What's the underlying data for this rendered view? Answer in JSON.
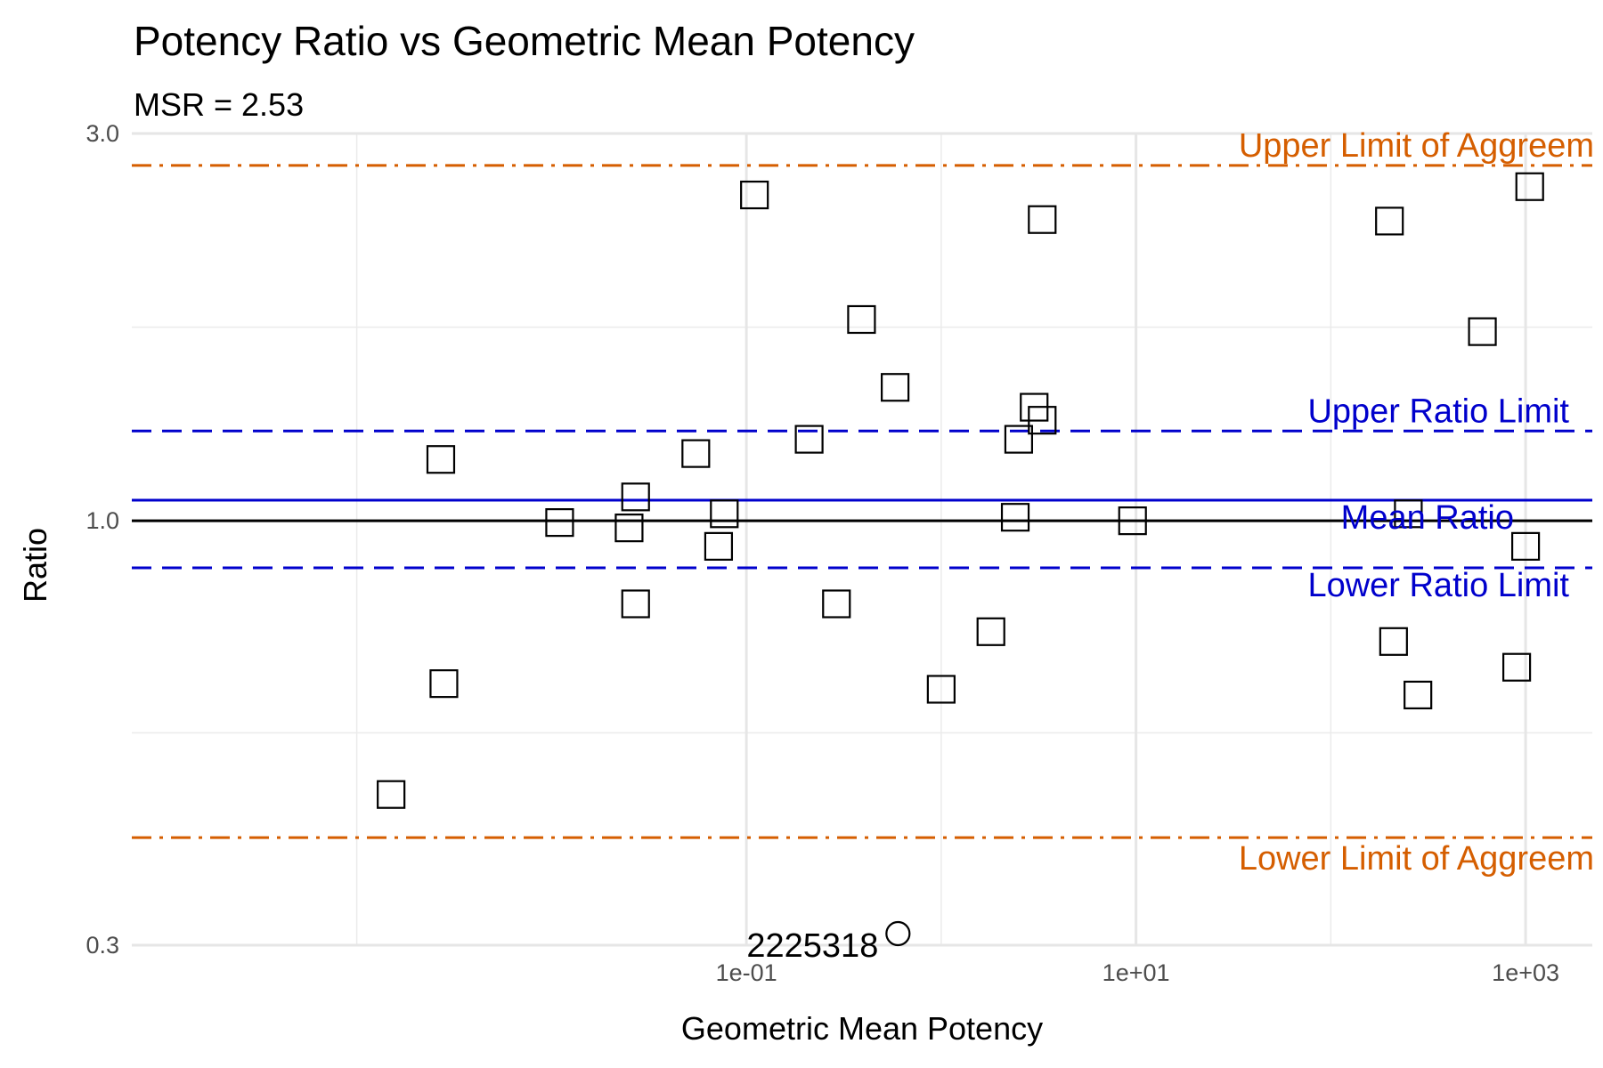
{
  "chart_data": {
    "type": "scatter",
    "title": "Potency Ratio vs Geometric Mean Potency",
    "subtitle": "MSR = 2.53",
    "xlabel": "Geometric Mean Potency",
    "ylabel": "Ratio",
    "x_scale": "log10",
    "y_scale": "log10",
    "xlim": [
      7e-05,
      2200
    ],
    "ylim": [
      0.3,
      3.0
    ],
    "x_ticks": [
      {
        "value": 0.1,
        "label": "1e-01"
      },
      {
        "value": 10,
        "label": "1e+01"
      },
      {
        "value": 1000,
        "label": "1e+03"
      }
    ],
    "x_minor_ticks": [
      0.001,
      1,
      100
    ],
    "y_ticks": [
      {
        "value": 0.3,
        "label": "0.3"
      },
      {
        "value": 1.0,
        "label": "1.0"
      },
      {
        "value": 3.0,
        "label": "3.0"
      }
    ],
    "y_minor_ticks": [
      0.548,
      1.732
    ],
    "grid": true,
    "reference_lines": [
      {
        "label": "Upper Limit of Aggreem",
        "y": 2.74,
        "style": "dashdot",
        "color": "#D55E00"
      },
      {
        "label": "Upper Ratio Limit",
        "y": 1.29,
        "style": "dashed",
        "color": "#0000CC"
      },
      {
        "label": "Mean Ratio",
        "y": 1.06,
        "style": "solid",
        "color": "#0000CC"
      },
      {
        "label": "",
        "y": 1.0,
        "style": "solid",
        "color": "#000000"
      },
      {
        "label": "Lower Ratio Limit",
        "y": 0.875,
        "style": "dashed",
        "color": "#0000CC"
      },
      {
        "label": "Lower Limit of Aggreem",
        "y": 0.407,
        "style": "dashdot",
        "color": "#D55E00"
      }
    ],
    "series": [
      {
        "marker": "square",
        "points": [
          {
            "x": 0.0015,
            "y": 0.46
          },
          {
            "x": 0.0027,
            "y": 1.19
          },
          {
            "x": 0.0028,
            "y": 0.63
          },
          {
            "x": 0.011,
            "y": 0.995
          },
          {
            "x": 0.025,
            "y": 0.98
          },
          {
            "x": 0.027,
            "y": 1.07
          },
          {
            "x": 0.027,
            "y": 0.79
          },
          {
            "x": 0.055,
            "y": 1.21
          },
          {
            "x": 0.072,
            "y": 0.93
          },
          {
            "x": 0.077,
            "y": 1.02
          },
          {
            "x": 0.11,
            "y": 2.52
          },
          {
            "x": 0.21,
            "y": 1.26
          },
          {
            "x": 0.29,
            "y": 0.79
          },
          {
            "x": 0.39,
            "y": 1.77
          },
          {
            "x": 0.58,
            "y": 1.46
          },
          {
            "x": 1.0,
            "y": 0.62
          },
          {
            "x": 1.8,
            "y": 0.73
          },
          {
            "x": 2.4,
            "y": 1.01
          },
          {
            "x": 2.5,
            "y": 1.26
          },
          {
            "x": 3.0,
            "y": 1.38
          },
          {
            "x": 3.3,
            "y": 1.33
          },
          {
            "x": 3.3,
            "y": 2.35
          },
          {
            "x": 9.6,
            "y": 1.0
          },
          {
            "x": 200,
            "y": 2.34
          },
          {
            "x": 210,
            "y": 0.71
          },
          {
            "x": 250,
            "y": 1.02
          },
          {
            "x": 280,
            "y": 0.61
          },
          {
            "x": 900,
            "y": 0.66
          },
          {
            "x": 1000,
            "y": 0.93
          },
          {
            "x": 600,
            "y": 1.71
          },
          {
            "x": 1050,
            "y": 2.58
          }
        ]
      },
      {
        "marker": "circle",
        "points": [
          {
            "x": 0.6,
            "y": 0.31,
            "label": "2225318"
          }
        ]
      }
    ]
  }
}
